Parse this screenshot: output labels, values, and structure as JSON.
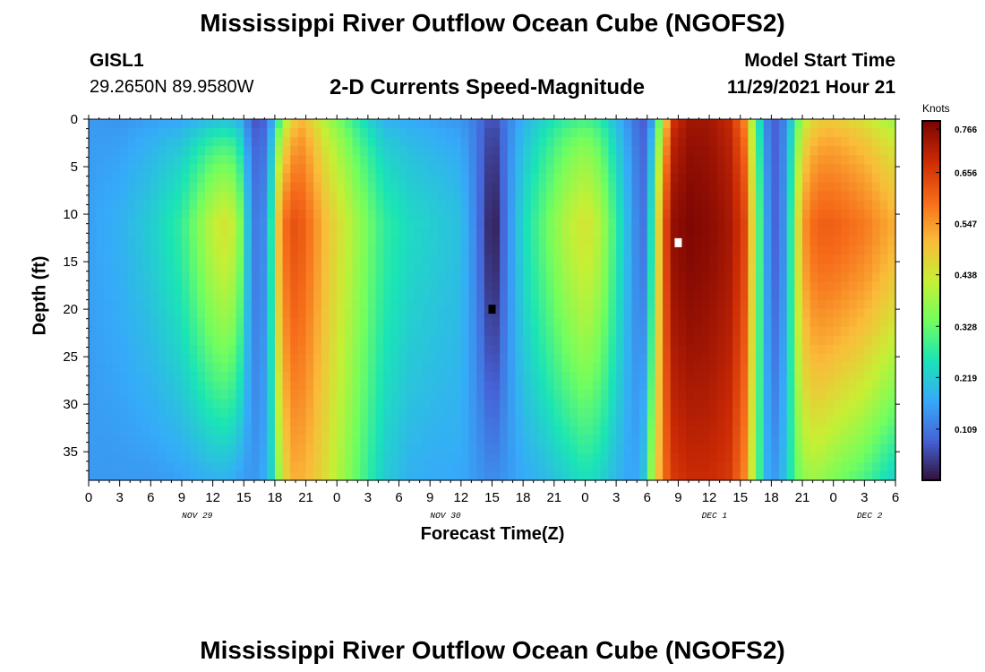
{
  "page": {
    "title_top": "Mississippi River Outflow Ocean Cube (NGOFS2)",
    "title_bottom": "Mississippi River Outflow Ocean Cube (NGOFS2)"
  },
  "header": {
    "station_id": "GISL1",
    "station_coords": "29.2650N  89.9580W",
    "subtitle": "2-D Currents Speed-Magnitude",
    "model_start_label": "Model Start Time",
    "model_start_value": "11/29/2021 Hour 21"
  },
  "chart_data": {
    "type": "heatmap",
    "title": "2-D Currents Speed-Magnitude",
    "xlabel": "Forecast Time(Z)",
    "ylabel": "Depth (ft)",
    "x_range_hours": [
      0,
      78
    ],
    "y_range_ft": [
      0,
      38
    ],
    "x_tick_labels": [
      "0",
      "3",
      "6",
      "9",
      "12",
      "15",
      "18",
      "21",
      "0",
      "3",
      "6",
      "9",
      "12",
      "15",
      "18",
      "21",
      "0",
      "3",
      "6",
      "9",
      "12",
      "15",
      "18",
      "21",
      "0",
      "3",
      "6"
    ],
    "x_date_labels": [
      {
        "label": "NOV 29",
        "hour": 10.5
      },
      {
        "label": "NOV 30",
        "hour": 34.5
      },
      {
        "label": "DEC 1",
        "hour": 60.5
      },
      {
        "label": "DEC 2",
        "hour": 75.5
      }
    ],
    "y_ticks": [
      0,
      5,
      10,
      15,
      20,
      25,
      30,
      35
    ],
    "colorbar": {
      "unit": "Knots",
      "tick_values": [
        0.109,
        0.219,
        0.328,
        0.438,
        0.547,
        0.656,
        0.766
      ],
      "min": 0.0,
      "max": 0.766,
      "stops": [
        "#30123b",
        "#4662d7",
        "#36aaf9",
        "#1ae4b6",
        "#72fe5e",
        "#c7ef34",
        "#fabb39",
        "#f66b19",
        "#cb2a04",
        "#7a0403"
      ]
    },
    "markers": [
      {
        "name": "min-marker",
        "color": "#000000",
        "hour": 39,
        "depth_ft": 20
      },
      {
        "name": "max-marker",
        "color": "#ffffff",
        "hour": 57,
        "depth_ft": 13
      }
    ],
    "speed_timeseries": {
      "hours": [
        0,
        3,
        6,
        9,
        10.5,
        12,
        13.5,
        14.5,
        15.5,
        16.5,
        17.5,
        18.5,
        19.5,
        20.5,
        21.5,
        23,
        26,
        28.5,
        31,
        33.5,
        36,
        37.5,
        38.5,
        39,
        39.5,
        40.5,
        42,
        44,
        46,
        48,
        49.5,
        51,
        52.5,
        53.5,
        54.5,
        55.5,
        56.5,
        58,
        60,
        62,
        63.5,
        64.5,
        65.5,
        66.5,
        67.5,
        68.5,
        69.5,
        70.5,
        72,
        75,
        78
      ],
      "surface": [
        0.15,
        0.14,
        0.15,
        0.15,
        0.16,
        0.17,
        0.17,
        0.16,
        0.1,
        0.05,
        0.12,
        0.28,
        0.44,
        0.5,
        0.46,
        0.38,
        0.25,
        0.17,
        0.16,
        0.15,
        0.14,
        0.11,
        0.08,
        0.07,
        0.08,
        0.12,
        0.17,
        0.22,
        0.26,
        0.28,
        0.25,
        0.18,
        0.12,
        0.07,
        0.14,
        0.4,
        0.66,
        0.72,
        0.72,
        0.68,
        0.55,
        0.3,
        0.12,
        0.08,
        0.14,
        0.3,
        0.42,
        0.46,
        0.47,
        0.43,
        0.36
      ],
      "mid": [
        0.16,
        0.18,
        0.22,
        0.28,
        0.35,
        0.42,
        0.45,
        0.38,
        0.18,
        0.08,
        0.22,
        0.55,
        0.63,
        0.62,
        0.58,
        0.5,
        0.38,
        0.28,
        0.24,
        0.22,
        0.2,
        0.12,
        0.04,
        0.0,
        0.03,
        0.13,
        0.24,
        0.32,
        0.4,
        0.45,
        0.4,
        0.28,
        0.16,
        0.09,
        0.27,
        0.6,
        0.74,
        0.76,
        0.75,
        0.72,
        0.64,
        0.38,
        0.16,
        0.08,
        0.17,
        0.44,
        0.58,
        0.61,
        0.61,
        0.58,
        0.52
      ],
      "bottom": [
        0.15,
        0.15,
        0.15,
        0.16,
        0.17,
        0.18,
        0.18,
        0.16,
        0.15,
        0.15,
        0.2,
        0.4,
        0.52,
        0.52,
        0.5,
        0.45,
        0.32,
        0.22,
        0.18,
        0.17,
        0.17,
        0.15,
        0.14,
        0.13,
        0.14,
        0.15,
        0.17,
        0.19,
        0.22,
        0.25,
        0.23,
        0.19,
        0.16,
        0.18,
        0.4,
        0.58,
        0.66,
        0.68,
        0.68,
        0.66,
        0.56,
        0.35,
        0.18,
        0.15,
        0.22,
        0.33,
        0.38,
        0.38,
        0.35,
        0.3,
        0.22
      ]
    }
  }
}
